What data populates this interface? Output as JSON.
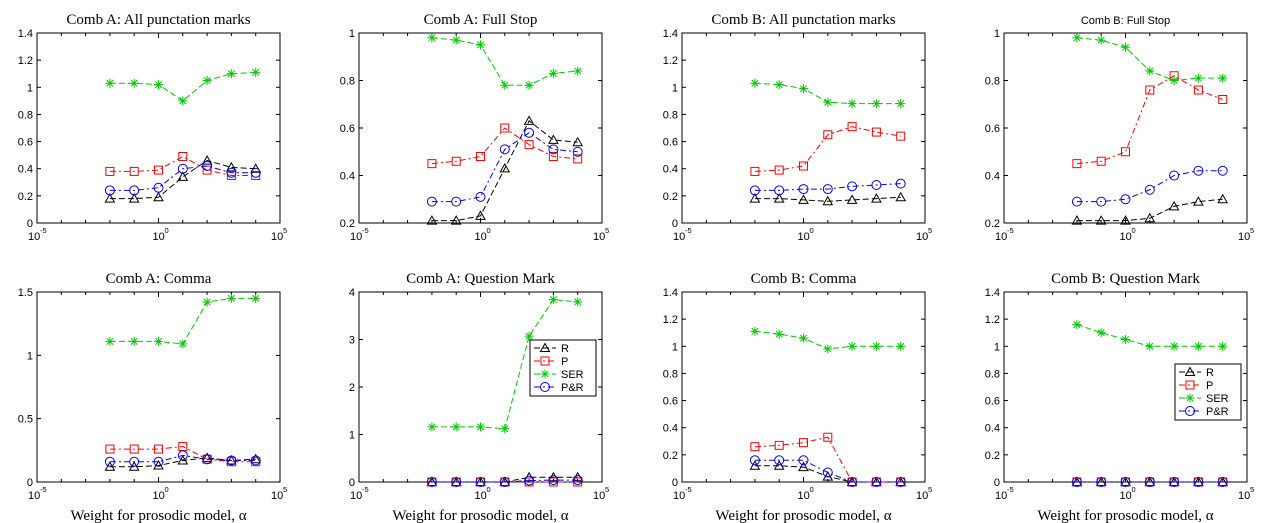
{
  "chart_data": [
    {
      "type": "line",
      "title": "Comb A: All punctation marks",
      "title_style": "serif",
      "xlabel": "",
      "xscale": "log",
      "xlim": [
        1e-05,
        100000
      ],
      "x": [
        0.01,
        0.1,
        1,
        10,
        100,
        1000,
        10000
      ],
      "ylim": [
        0,
        1.4
      ],
      "yticks": [
        0,
        0.2,
        0.4,
        0.6,
        0.8,
        1,
        1.2,
        1.4
      ],
      "yticklabels": [
        "0",
        "0.2",
        "0.4",
        "0.6",
        "0.8",
        "1",
        "1.2",
        "1.4"
      ],
      "series": [
        {
          "name": "R",
          "color": "#000000",
          "marker": "triangle",
          "dash": "6,3",
          "values": [
            0.18,
            0.18,
            0.19,
            0.34,
            0.46,
            0.41,
            0.4
          ]
        },
        {
          "name": "P",
          "color": "#ff0000",
          "marker": "square",
          "dash": "6,3,2,3",
          "values": [
            0.38,
            0.38,
            0.39,
            0.49,
            0.39,
            0.35,
            0.35
          ]
        },
        {
          "name": "SER",
          "color": "#00cc00",
          "marker": "star",
          "dash": "6,3",
          "values": [
            1.03,
            1.03,
            1.02,
            0.9,
            1.05,
            1.1,
            1.11
          ]
        },
        {
          "name": "P&R",
          "color": "#0000ff",
          "marker": "circle",
          "dash": "6,3,2,3",
          "values": [
            0.24,
            0.24,
            0.26,
            0.4,
            0.42,
            0.37,
            0.37
          ]
        }
      ],
      "legend": null
    },
    {
      "type": "line",
      "title": "Comb A: Full Stop",
      "title_style": "serif",
      "xlabel": "",
      "xscale": "log",
      "xlim": [
        1e-05,
        100000
      ],
      "x": [
        0.01,
        0.1,
        1,
        10,
        100,
        1000,
        10000
      ],
      "ylim": [
        0.2,
        1
      ],
      "yticks": [
        0.2,
        0.4,
        0.6,
        0.8,
        1
      ],
      "yticklabels": [
        "0.2",
        "0.4",
        "0.6",
        "0.8",
        "1"
      ],
      "series": [
        {
          "name": "R",
          "color": "#000000",
          "marker": "triangle",
          "dash": "6,3",
          "values": [
            0.21,
            0.21,
            0.23,
            0.43,
            0.63,
            0.55,
            0.54
          ]
        },
        {
          "name": "P",
          "color": "#ff0000",
          "marker": "square",
          "dash": "6,3,2,3",
          "values": [
            0.45,
            0.46,
            0.48,
            0.6,
            0.53,
            0.48,
            0.47
          ]
        },
        {
          "name": "SER",
          "color": "#00cc00",
          "marker": "star",
          "dash": "6,3",
          "values": [
            0.98,
            0.97,
            0.95,
            0.78,
            0.78,
            0.83,
            0.84
          ]
        },
        {
          "name": "P&R",
          "color": "#0000ff",
          "marker": "circle",
          "dash": "6,3,2,3",
          "values": [
            0.29,
            0.29,
            0.31,
            0.51,
            0.58,
            0.51,
            0.5
          ]
        }
      ],
      "legend": null
    },
    {
      "type": "line",
      "title": "Comb B: All punctation marks",
      "title_style": "serif",
      "xlabel": "",
      "xscale": "log",
      "xlim": [
        1e-05,
        100000
      ],
      "x": [
        0.01,
        0.1,
        1,
        10,
        100,
        1000,
        10000
      ],
      "ylim": [
        0,
        1.4
      ],
      "yticks": [
        0,
        0.2,
        0.4,
        0.6,
        0.8,
        1,
        1.2,
        1.4
      ],
      "yticklabels": [
        "0",
        "0.2",
        "0.4",
        "0.6",
        "0.8",
        "1",
        "1.2",
        "1.4"
      ],
      "series": [
        {
          "name": "R",
          "color": "#000000",
          "marker": "triangle",
          "dash": "6,3",
          "values": [
            0.18,
            0.18,
            0.17,
            0.16,
            0.17,
            0.18,
            0.19
          ]
        },
        {
          "name": "P",
          "color": "#ff0000",
          "marker": "square",
          "dash": "6,3,2,3",
          "values": [
            0.38,
            0.39,
            0.42,
            0.65,
            0.71,
            0.67,
            0.64
          ]
        },
        {
          "name": "SER",
          "color": "#00cc00",
          "marker": "star",
          "dash": "6,3",
          "values": [
            1.03,
            1.02,
            0.99,
            0.89,
            0.88,
            0.88,
            0.88
          ]
        },
        {
          "name": "P&R",
          "color": "#0000ff",
          "marker": "circle",
          "dash": "6,3,2,3",
          "values": [
            0.24,
            0.24,
            0.25,
            0.25,
            0.27,
            0.28,
            0.29
          ]
        }
      ],
      "legend": null
    },
    {
      "type": "line",
      "title": "Comb B: Full Stop",
      "title_style": "sans",
      "xlabel": "",
      "xscale": "log",
      "xlim": [
        1e-05,
        100000
      ],
      "x": [
        0.01,
        0.1,
        1,
        10,
        100,
        1000,
        10000
      ],
      "ylim": [
        0.2,
        1
      ],
      "yticks": [
        0.2,
        0.4,
        0.6,
        0.8,
        1
      ],
      "yticklabels": [
        "0.2",
        "0.4",
        "0.6",
        "0.8",
        "1"
      ],
      "series": [
        {
          "name": "R",
          "color": "#000000",
          "marker": "triangle",
          "dash": "6,3",
          "values": [
            0.21,
            0.21,
            0.21,
            0.22,
            0.27,
            0.29,
            0.3
          ]
        },
        {
          "name": "P",
          "color": "#ff0000",
          "marker": "square",
          "dash": "6,3,2,3",
          "values": [
            0.45,
            0.46,
            0.5,
            0.76,
            0.82,
            0.76,
            0.72
          ]
        },
        {
          "name": "SER",
          "color": "#00cc00",
          "marker": "star",
          "dash": "6,3",
          "values": [
            0.98,
            0.97,
            0.94,
            0.84,
            0.8,
            0.81,
            0.81
          ]
        },
        {
          "name": "P&R",
          "color": "#0000ff",
          "marker": "circle",
          "dash": "6,3,2,3",
          "values": [
            0.29,
            0.29,
            0.3,
            0.34,
            0.4,
            0.42,
            0.42
          ]
        }
      ],
      "legend": null
    },
    {
      "type": "line",
      "title": "Comb A: Comma",
      "title_style": "serif",
      "xlabel": "Weight for prosodic model, α",
      "xscale": "log",
      "xlim": [
        1e-05,
        100000
      ],
      "x": [
        0.01,
        0.1,
        1,
        10,
        100,
        1000,
        10000
      ],
      "ylim": [
        0,
        1.5
      ],
      "yticks": [
        0,
        0.5,
        1,
        1.5
      ],
      "yticklabels": [
        "0",
        "0.5",
        "1",
        "1.5"
      ],
      "series": [
        {
          "name": "R",
          "color": "#000000",
          "marker": "triangle",
          "dash": "6,3",
          "values": [
            0.12,
            0.12,
            0.13,
            0.17,
            0.19,
            0.17,
            0.18
          ]
        },
        {
          "name": "P",
          "color": "#ff0000",
          "marker": "square",
          "dash": "6,3,2,3",
          "values": [
            0.26,
            0.26,
            0.26,
            0.28,
            0.18,
            0.16,
            0.16
          ]
        },
        {
          "name": "SER",
          "color": "#00cc00",
          "marker": "star",
          "dash": "6,3",
          "values": [
            1.11,
            1.11,
            1.11,
            1.09,
            1.42,
            1.45,
            1.45
          ]
        },
        {
          "name": "P&R",
          "color": "#0000ff",
          "marker": "circle",
          "dash": "6,3,2,3",
          "values": [
            0.16,
            0.16,
            0.16,
            0.21,
            0.18,
            0.17,
            0.17
          ]
        }
      ],
      "legend": null
    },
    {
      "type": "line",
      "title": "Comb A: Question Mark",
      "title_style": "serif",
      "xlabel": "Weight for prosodic model, α",
      "xscale": "log",
      "xlim": [
        1e-05,
        100000
      ],
      "x": [
        0.01,
        0.1,
        1,
        10,
        100,
        1000,
        10000
      ],
      "ylim": [
        0,
        4
      ],
      "yticks": [
        0,
        1,
        2,
        3,
        4
      ],
      "yticklabels": [
        "0",
        "1",
        "2",
        "3",
        "4"
      ],
      "series": [
        {
          "name": "R",
          "color": "#000000",
          "marker": "triangle",
          "dash": "6,3",
          "values": [
            0,
            0,
            0,
            0,
            0.1,
            0.1,
            0.1
          ]
        },
        {
          "name": "P",
          "color": "#ff0000",
          "marker": "square",
          "dash": "6,3,2,3",
          "values": [
            0,
            0,
            0,
            0,
            0,
            0,
            0
          ]
        },
        {
          "name": "SER",
          "color": "#00cc00",
          "marker": "star",
          "dash": "6,3",
          "values": [
            1.16,
            1.16,
            1.16,
            1.12,
            3.07,
            3.84,
            3.79
          ]
        },
        {
          "name": "P&R",
          "color": "#0000ff",
          "marker": "circle",
          "dash": "6,3,2,3",
          "values": [
            0,
            0,
            0,
            0,
            0.03,
            0.04,
            0.04
          ]
        }
      ],
      "legend": "right"
    },
    {
      "type": "line",
      "title": "Comb B: Comma",
      "title_style": "serif",
      "xlabel": "Weight for prosodic model, α",
      "xscale": "log",
      "xlim": [
        1e-05,
        100000
      ],
      "x": [
        0.01,
        0.1,
        1,
        10,
        100,
        1000,
        10000
      ],
      "ylim": [
        0,
        1.4
      ],
      "yticks": [
        0,
        0.2,
        0.4,
        0.6,
        0.8,
        1,
        1.2,
        1.4
      ],
      "yticklabels": [
        "0",
        "0.2",
        "0.4",
        "0.6",
        "0.8",
        "1",
        "1.2",
        "1.4"
      ],
      "series": [
        {
          "name": "R",
          "color": "#000000",
          "marker": "triangle",
          "dash": "6,3",
          "values": [
            0.12,
            0.12,
            0.11,
            0.04,
            0,
            0,
            0
          ]
        },
        {
          "name": "P",
          "color": "#ff0000",
          "marker": "square",
          "dash": "6,3,2,3",
          "values": [
            0.26,
            0.27,
            0.29,
            0.33,
            0,
            0,
            0
          ]
        },
        {
          "name": "SER",
          "color": "#00cc00",
          "marker": "star",
          "dash": "6,3",
          "values": [
            1.11,
            1.09,
            1.06,
            0.98,
            1.0,
            1.0,
            1.0
          ]
        },
        {
          "name": "P&R",
          "color": "#0000ff",
          "marker": "circle",
          "dash": "6,3,2,3",
          "values": [
            0.16,
            0.16,
            0.16,
            0.07,
            0,
            0,
            0
          ]
        }
      ],
      "legend": null
    },
    {
      "type": "line",
      "title": "Comb B: Question Mark",
      "title_style": "serif",
      "xlabel": "Weight for prosodic model, α",
      "xscale": "log",
      "xlim": [
        1e-05,
        100000
      ],
      "x": [
        0.01,
        0.1,
        1,
        10,
        100,
        1000,
        10000
      ],
      "ylim": [
        0,
        1.4
      ],
      "yticks": [
        0,
        0.2,
        0.4,
        0.6,
        0.8,
        1,
        1.2,
        1.4
      ],
      "yticklabels": [
        "0",
        "0.2",
        "0.4",
        "0.6",
        "0.8",
        "1",
        "1.2",
        "1.4"
      ],
      "series": [
        {
          "name": "R",
          "color": "#000000",
          "marker": "triangle",
          "dash": "6,3",
          "values": [
            0,
            0,
            0,
            0,
            0,
            0,
            0
          ]
        },
        {
          "name": "P",
          "color": "#ff0000",
          "marker": "square",
          "dash": "6,3,2,3",
          "values": [
            0,
            0,
            0,
            0,
            0,
            0,
            0
          ]
        },
        {
          "name": "SER",
          "color": "#00cc00",
          "marker": "star",
          "dash": "6,3",
          "values": [
            1.16,
            1.1,
            1.05,
            1.0,
            1.0,
            1.0,
            1.0
          ]
        },
        {
          "name": "P&R",
          "color": "#0000ff",
          "marker": "circle",
          "dash": "6,3,2,3",
          "values": [
            0,
            0,
            0,
            0,
            0,
            0,
            0
          ]
        }
      ],
      "legend": "right"
    }
  ]
}
